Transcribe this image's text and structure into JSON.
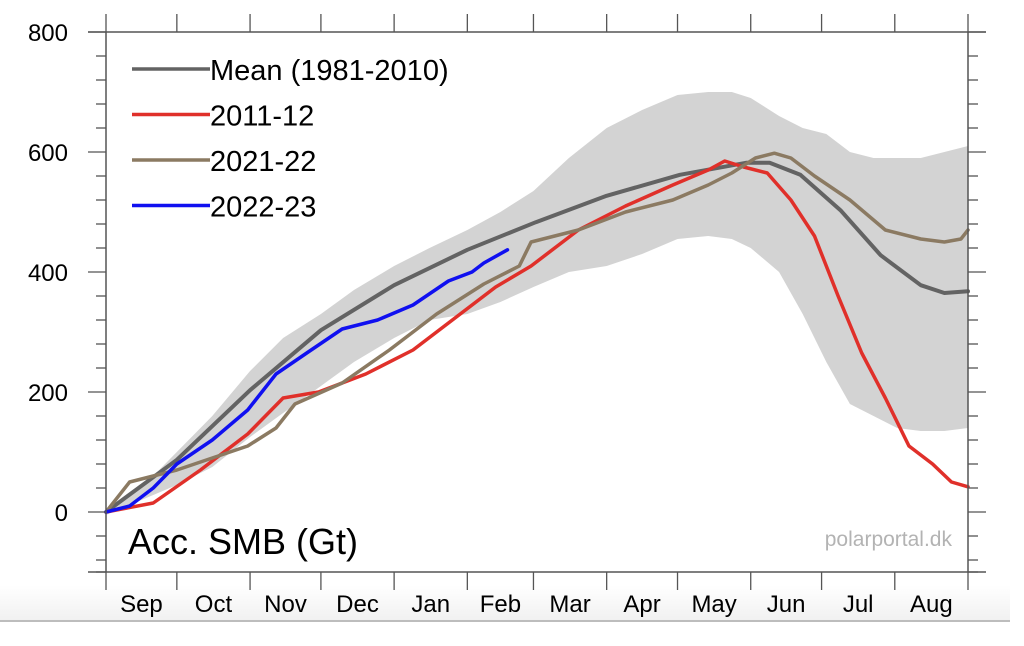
{
  "chart_data": {
    "type": "line",
    "title": "",
    "ylabel": "Acc. SMB (Gt)",
    "xlabel": "",
    "credit": "polarportal.dk",
    "x_unit": "days since 1 Sep",
    "xlim": [
      0,
      365
    ],
    "ylim": [
      -100,
      800
    ],
    "yticks": [
      0,
      200,
      400,
      600,
      800
    ],
    "yminor_step": 40,
    "month_ticks": [
      0,
      30,
      61,
      91,
      122,
      153,
      181,
      212,
      242,
      273,
      303,
      334,
      365
    ],
    "xtick_labels": [
      "Sep",
      "Oct",
      "Nov",
      "Dec",
      "Jan",
      "Feb",
      "Mar",
      "Apr",
      "May",
      "Jun",
      "Jul",
      "Aug"
    ],
    "legend_position": "top-left",
    "band": {
      "name": "Range (1981-2010)",
      "color": "#d3d3d3",
      "x": [
        0,
        15,
        30,
        45,
        61,
        75,
        91,
        105,
        122,
        137,
        153,
        167,
        181,
        196,
        212,
        227,
        242,
        255,
        265,
        273,
        285,
        295,
        305,
        315,
        325,
        335,
        345,
        355,
        365
      ],
      "upper": [
        5,
        40,
        100,
        160,
        235,
        290,
        330,
        370,
        410,
        440,
        470,
        500,
        535,
        590,
        640,
        670,
        695,
        700,
        700,
        690,
        660,
        640,
        630,
        600,
        590,
        590,
        590,
        600,
        610
      ],
      "lower": [
        -5,
        20,
        45,
        75,
        125,
        165,
        210,
        250,
        290,
        320,
        330,
        350,
        375,
        400,
        410,
        430,
        455,
        460,
        455,
        440,
        400,
        330,
        250,
        180,
        160,
        140,
        135,
        135,
        140
      ]
    },
    "series": [
      {
        "name": "Mean (1981-2010)",
        "color": "#636363",
        "x": [
          0,
          30,
          61,
          91,
          122,
          153,
          182,
          212,
          243,
          271,
          281,
          294,
          311,
          328,
          345,
          355,
          365
        ],
        "values": [
          0,
          87,
          203,
          303,
          378,
          437,
          483,
          527,
          562,
          582,
          582,
          562,
          503,
          428,
          378,
          365,
          368
        ]
      },
      {
        "name": "2011-12",
        "color": "#e0302a",
        "x": [
          0,
          20,
          40,
          60,
          75,
          90,
          110,
          130,
          150,
          165,
          180,
          200,
          220,
          240,
          255,
          262,
          270,
          280,
          290,
          300,
          310,
          320,
          330,
          340,
          350,
          358,
          365
        ],
        "values": [
          0,
          15,
          70,
          130,
          190,
          200,
          230,
          270,
          330,
          375,
          410,
          470,
          510,
          545,
          570,
          585,
          575,
          565,
          520,
          460,
          360,
          265,
          190,
          110,
          80,
          50,
          42
        ]
      },
      {
        "name": "2021-22",
        "color": "#8b7a62",
        "x": [
          0,
          10,
          30,
          60,
          72,
          80,
          100,
          120,
          140,
          160,
          175,
          180,
          200,
          220,
          240,
          255,
          265,
          275,
          283,
          290,
          300,
          315,
          330,
          345,
          355,
          362,
          365
        ],
        "values": [
          0,
          50,
          70,
          110,
          140,
          180,
          215,
          270,
          330,
          380,
          410,
          450,
          470,
          500,
          520,
          545,
          565,
          590,
          598,
          590,
          560,
          520,
          470,
          455,
          450,
          455,
          470
        ]
      },
      {
        "name": "2022-23",
        "color": "#1010f0",
        "x": [
          0,
          10,
          20,
          30,
          45,
          60,
          72,
          85,
          100,
          115,
          130,
          145,
          155,
          160,
          170
        ],
        "values": [
          0,
          10,
          40,
          80,
          120,
          170,
          230,
          265,
          305,
          320,
          345,
          385,
          400,
          415,
          437
        ]
      }
    ]
  }
}
